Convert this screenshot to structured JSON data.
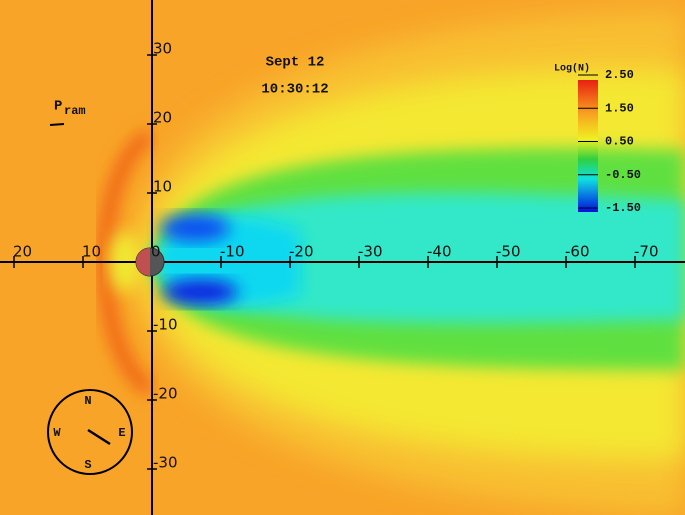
{
  "header": {
    "date": "Sept 12",
    "time": "10:30:12"
  },
  "pressure_label": {
    "symbol": "P",
    "subscript": "ram"
  },
  "x_axis": {
    "ticks": [
      20,
      10,
      0,
      -10,
      -20,
      -30,
      -40,
      -50,
      -60,
      -70
    ]
  },
  "y_axis": {
    "ticks": [
      30,
      20,
      10,
      -10,
      -20,
      -30
    ]
  },
  "colorbar": {
    "label": "Log(N)",
    "ticks": [
      {
        "value": 2.5,
        "label": "2.50"
      },
      {
        "value": 1.5,
        "label": "1.50"
      },
      {
        "value": 0.5,
        "label": "0.50"
      },
      {
        "value": -0.5,
        "label": "-0.50"
      },
      {
        "value": -1.5,
        "label": "-1.50"
      }
    ]
  },
  "compass": {
    "north": "N",
    "south": "S",
    "east": "E",
    "west": "W"
  }
}
